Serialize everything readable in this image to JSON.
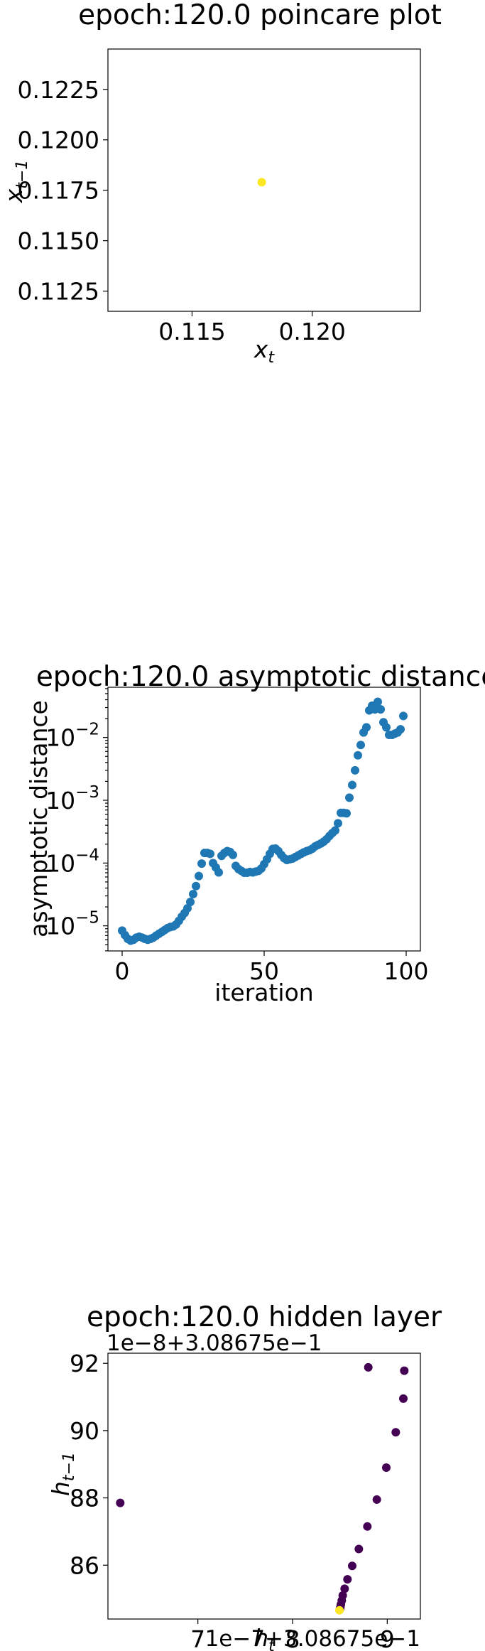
{
  "chart_data": [
    {
      "type": "scatter",
      "title": "epoch:120.0 poincare plot",
      "xlabel_main": "x",
      "xlabel_sub": "t",
      "ylabel_main": "x",
      "ylabel_sub": "t−1",
      "xlim": [
        0.1115,
        0.1245
      ],
      "ylim": [
        0.1115,
        0.1245
      ],
      "xticks": [
        0.115,
        0.12
      ],
      "xtick_labels": [
        "0.115",
        "0.120"
      ],
      "yticks": [
        0.1125,
        0.115,
        0.1175,
        0.12,
        0.1225
      ],
      "ytick_labels": [
        "0.1125",
        "0.1150",
        "0.1175",
        "0.1200",
        "0.1225"
      ],
      "grid": false,
      "colormap": "viridis",
      "point_color": "#fde725",
      "points": [
        {
          "x": 0.1179,
          "y": 0.1179
        }
      ]
    },
    {
      "type": "scatter",
      "title": "epoch:120.0 asymptotic distance",
      "xlabel": "iteration",
      "ylabel": "asymptotic distance",
      "xlim": [
        -5,
        105
      ],
      "ylim_log10": [
        -5.4,
        -1.2
      ],
      "yscale": "log",
      "xticks": [
        0,
        50,
        100
      ],
      "xtick_labels": [
        "0",
        "50",
        "100"
      ],
      "yticks_log10": [
        -5,
        -4,
        -3,
        -2
      ],
      "ytick_labels": [
        "10",
        "10",
        "10",
        "10"
      ],
      "ytick_exponents": [
        "−5",
        "−4",
        "−3",
        "−2"
      ],
      "grid": false,
      "point_color": "#1f77b4",
      "x": [
        0,
        1,
        2,
        3,
        4,
        5,
        6,
        7,
        8,
        9,
        10,
        11,
        12,
        13,
        14,
        15,
        16,
        17,
        18,
        19,
        20,
        21,
        22,
        23,
        24,
        25,
        26,
        27,
        28,
        29,
        30,
        31,
        32,
        33,
        34,
        35,
        36,
        37,
        38,
        39,
        40,
        41,
        42,
        43,
        44,
        45,
        46,
        47,
        48,
        49,
        50,
        51,
        52,
        53,
        54,
        55,
        56,
        57,
        58,
        59,
        60,
        61,
        62,
        63,
        64,
        65,
        66,
        67,
        68,
        69,
        70,
        71,
        72,
        73,
        74,
        75,
        76,
        77,
        78,
        79,
        80,
        81,
        82,
        83,
        84,
        85,
        86,
        87,
        88,
        89,
        90,
        91,
        92,
        93,
        94,
        95,
        96,
        97,
        98,
        99
      ],
      "y": [
        8.4e-06,
        7.1e-06,
        6.2e-06,
        5.8e-06,
        6e-06,
        6.5e-06,
        6.7e-06,
        6.5e-06,
        6.2e-06,
        6e-06,
        6.2e-06,
        6.5e-06,
        7e-06,
        7.5e-06,
        8e-06,
        8.6e-06,
        9.2e-06,
        9.6e-06,
        9.8e-06,
        1.05e-05,
        1.2e-05,
        1.4e-05,
        1.6e-05,
        1.9e-05,
        2.4e-05,
        3.2e-05,
        4.3e-05,
        6.2e-05,
        9.8e-05,
        0.000145,
        0.000145,
        0.00014,
        0.0001,
        8.5e-05,
        7.1e-05,
        0.00013,
        0.000145,
        0.000155,
        0.00015,
        0.000135,
        9e-05,
        8e-05,
        7.5e-05,
        7e-05,
        7e-05,
        7.2e-05,
        7.1e-05,
        7.3e-05,
        7.5e-05,
        8.2e-05,
        9.6e-05,
        0.000115,
        0.00014,
        0.000168,
        0.00017,
        0.000155,
        0.000135,
        0.00012,
        0.000112,
        0.000115,
        0.000118,
        0.000125,
        0.000132,
        0.00014,
        0.000148,
        0.000155,
        0.00016,
        0.00017,
        0.000185,
        0.000195,
        0.000205,
        0.00022,
        0.00024,
        0.00027,
        0.0003,
        0.00033,
        0.00043,
        0.00063,
        0.00063,
        0.00062,
        0.0011,
        0.00175,
        0.003,
        0.0052,
        0.0076,
        0.012,
        0.0145,
        0.027,
        0.032,
        0.028,
        0.037,
        0.028,
        0.0175,
        0.0145,
        0.011,
        0.011,
        0.0115,
        0.012,
        0.0135,
        0.022
      ]
    },
    {
      "type": "scatter",
      "title": "epoch:120.0 hidden layer",
      "xlabel_main": "h",
      "xlabel_sub": "t",
      "ylabel_main": "h",
      "ylabel_sub": "t−1",
      "x_offset_text": "1e−7+3.08675e−1",
      "y_offset_text": "1e−8+3.08675e−1",
      "xlim": [
        6.05,
        9.35
      ],
      "ylim": [
        84.4,
        92.3
      ],
      "xticks": [
        7,
        8,
        9
      ],
      "xtick_labels": [
        "7",
        "8",
        "9"
      ],
      "yticks": [
        86,
        88,
        90,
        92
      ],
      "ytick_labels": [
        "86",
        "88",
        "90",
        "92"
      ],
      "grid": false,
      "colormap": "viridis",
      "point_color": "#440154",
      "last_point_color": "#fde725",
      "points": [
        {
          "x": 6.18,
          "y": 87.85
        },
        {
          "x": 8.8,
          "y": 91.88
        },
        {
          "x": 9.18,
          "y": 91.78
        },
        {
          "x": 9.17,
          "y": 90.95
        },
        {
          "x": 9.09,
          "y": 89.95
        },
        {
          "x": 8.99,
          "y": 88.9
        },
        {
          "x": 8.89,
          "y": 87.95
        },
        {
          "x": 8.79,
          "y": 87.15
        },
        {
          "x": 8.7,
          "y": 86.48
        },
        {
          "x": 8.63,
          "y": 85.98
        },
        {
          "x": 8.58,
          "y": 85.58
        },
        {
          "x": 8.55,
          "y": 85.3
        },
        {
          "x": 8.53,
          "y": 85.1
        },
        {
          "x": 8.52,
          "y": 84.95
        },
        {
          "x": 8.51,
          "y": 84.83
        },
        {
          "x": 8.505,
          "y": 84.75
        },
        {
          "x": 8.5,
          "y": 84.7
        },
        {
          "x": 8.495,
          "y": 84.66
        }
      ]
    }
  ]
}
